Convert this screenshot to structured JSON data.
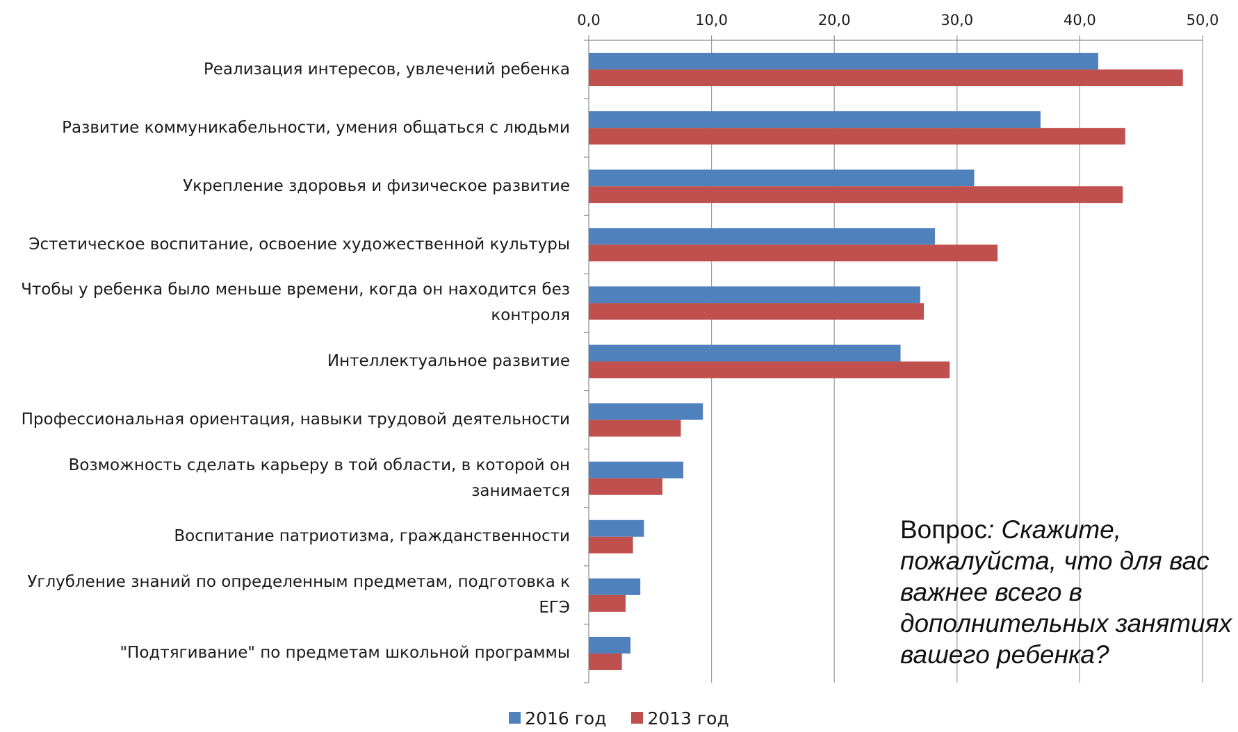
{
  "chart_data": {
    "type": "bar",
    "orientation": "horizontal",
    "categories": [
      "Реализация интересов, увлечений ребенка",
      "Развитие коммуникабельности, умения общаться с людьми",
      "Укрепление здоровья и физическое развитие",
      "Эстетическое воспитание, освоение художественной культуры",
      "Чтобы у ребенка было меньше времени, когда он находится без контроля",
      "Интеллектуальное развитие",
      "Профессиональная ориентация, навыки трудовой деятельности",
      "Возможность сделать карьеру в той области, в которой он занимается",
      "Воспитание патриотизма, гражданственности",
      "Углубление знаний по определенным предметам, подготовка к ЕГЭ",
      "\"Подтягивание\" по предметам школьной программы"
    ],
    "category_lines": [
      [
        "Реализация интересов, увлечений ребенка"
      ],
      [
        "Развитие коммуникабельности, умения общаться с людьми"
      ],
      [
        "Укрепление здоровья и физическое развитие"
      ],
      [
        "Эстетическое воспитание, освоение художественной культуры"
      ],
      [
        "Чтобы у ребенка было меньше времени, когда он находится без",
        "контроля"
      ],
      [
        "Интеллектуальное развитие"
      ],
      [
        "Профессиональная ориентация, навыки трудовой деятельности"
      ],
      [
        "Возможность сделать карьеру в той области, в которой он",
        "занимается"
      ],
      [
        "Воспитание патриотизма, гражданственности"
      ],
      [
        "Углубление знаний по определенным предметам, подготовка к",
        "ЕГЭ"
      ],
      [
        "\"Подтягивание\" по предметам школьной программы"
      ]
    ],
    "series": [
      {
        "name": "2016 год",
        "color": "#4F81BD",
        "values": [
          41.5,
          36.8,
          31.4,
          28.2,
          27.0,
          25.4,
          9.3,
          7.7,
          4.5,
          4.2,
          3.4
        ]
      },
      {
        "name": "2013 год",
        "color": "#C0504D",
        "values": [
          48.4,
          43.7,
          43.5,
          33.3,
          27.3,
          29.4,
          7.5,
          6.0,
          3.6,
          3.0,
          2.7
        ]
      }
    ],
    "xlim": [
      0,
      50
    ],
    "xticks": [
      "0,0",
      "10,0",
      "20,0",
      "30,0",
      "40,0",
      "50,0"
    ],
    "xtick_values": [
      0,
      10,
      20,
      30,
      40,
      50
    ],
    "xaxis_position": "top",
    "grid": true,
    "legend_position": "bottom"
  },
  "question": {
    "word": "Вопрос",
    "text": ": Скажите, пожалуйста, что для вас важнее всего в дополнительных занятиях вашего ребенка?"
  }
}
